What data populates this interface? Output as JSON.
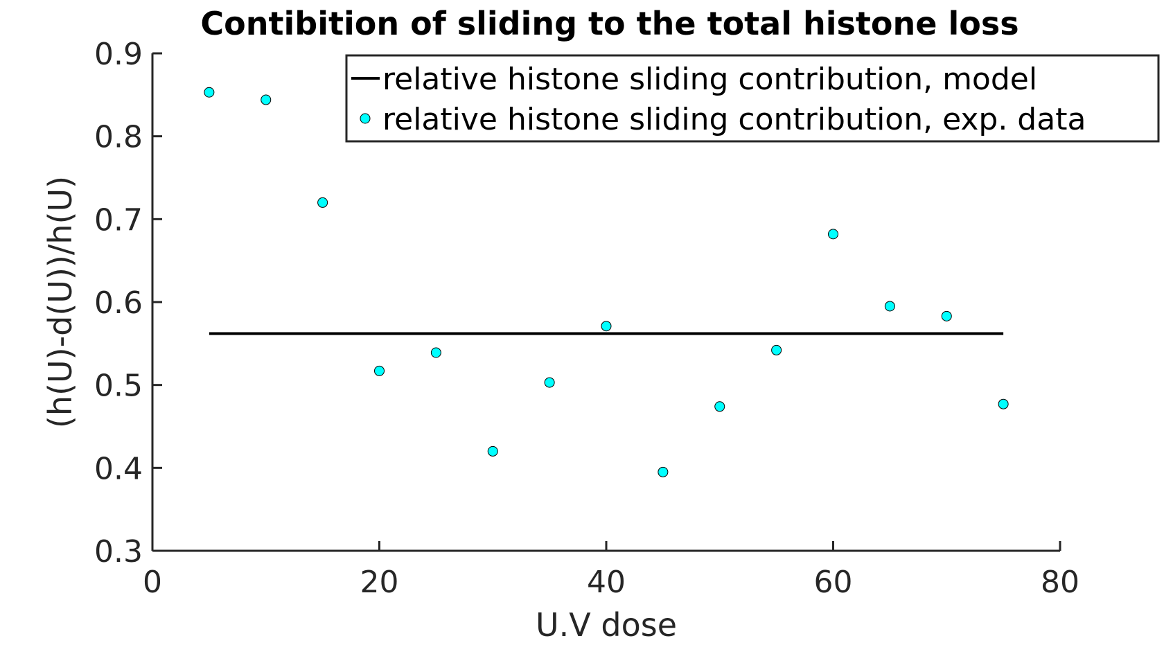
{
  "chart_data": {
    "type": "scatter",
    "title": "Contibition of sliding to the total histone loss",
    "xlabel": "U.V dose",
    "ylabel": "(h(U)-d(U))/h(U)",
    "xlim": [
      0,
      80
    ],
    "ylim": [
      0.3,
      0.9
    ],
    "xticks": [
      "0",
      "20",
      "40",
      "60",
      "80"
    ],
    "yticks": [
      "0.3",
      "0.4",
      "0.5",
      "0.6",
      "0.7",
      "0.8",
      "0.9"
    ],
    "grid": false,
    "legend_position": "top-right",
    "series": [
      {
        "name": "relative histone sliding contribution, model",
        "kind": "line",
        "color": "#000000",
        "x": [
          5,
          75
        ],
        "y": [
          0.562,
          0.562
        ]
      },
      {
        "name": "relative histone sliding contribution, exp. data",
        "kind": "scatter",
        "color": "#00FFFF",
        "x": [
          5,
          10,
          15,
          20,
          25,
          30,
          35,
          40,
          45,
          50,
          55,
          60,
          65,
          70,
          75
        ],
        "y": [
          0.853,
          0.844,
          0.72,
          0.517,
          0.539,
          0.42,
          0.503,
          0.571,
          0.395,
          0.474,
          0.542,
          0.682,
          0.595,
          0.583,
          0.477
        ]
      }
    ]
  }
}
